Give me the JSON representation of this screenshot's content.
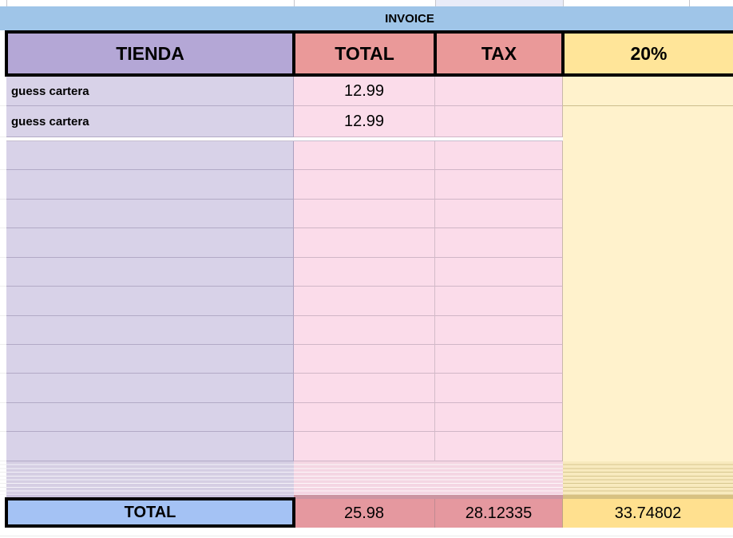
{
  "sheet": {
    "title": "INVOICE"
  },
  "columns": [
    {
      "label": "TIENDA"
    },
    {
      "label": "TOTAL"
    },
    {
      "label": "TAX"
    },
    {
      "label": "20%"
    }
  ],
  "rows": [
    {
      "tienda": "guess cartera",
      "total": "12.99",
      "tax": "",
      "pct": ""
    },
    {
      "tienda": "guess cartera",
      "total": "12.99",
      "tax": "",
      "pct": ""
    },
    {
      "tienda": "",
      "total": "",
      "tax": "",
      "pct": ""
    },
    {
      "tienda": "",
      "total": "",
      "tax": "",
      "pct": ""
    },
    {
      "tienda": "",
      "total": "",
      "tax": "",
      "pct": ""
    },
    {
      "tienda": "",
      "total": "",
      "tax": "",
      "pct": ""
    },
    {
      "tienda": "",
      "total": "",
      "tax": "",
      "pct": ""
    },
    {
      "tienda": "",
      "total": "",
      "tax": "",
      "pct": ""
    },
    {
      "tienda": "",
      "total": "",
      "tax": "",
      "pct": ""
    },
    {
      "tienda": "",
      "total": "",
      "tax": "",
      "pct": ""
    },
    {
      "tienda": "",
      "total": "",
      "tax": "",
      "pct": ""
    },
    {
      "tienda": "",
      "total": "",
      "tax": "",
      "pct": ""
    },
    {
      "tienda": "",
      "total": "",
      "tax": "",
      "pct": ""
    }
  ],
  "summary": {
    "label": "TOTAL",
    "total": "25.98",
    "tax": "28.12335",
    "pct": "33.74802"
  },
  "colors": {
    "invoice_band": "#9fc5e8",
    "header_store": "#b4a7d6",
    "header_red": "#ea9999",
    "header_yellow": "#ffe599",
    "row_store": "#d8d2e8",
    "row_money": "#fbdcea",
    "row_pct_merged": "#fff2cc",
    "summary_blue": "#a4c2f4",
    "summary_red": "#e5989f",
    "summary_yellow": "#ffe08f",
    "border_black": "#000000"
  }
}
